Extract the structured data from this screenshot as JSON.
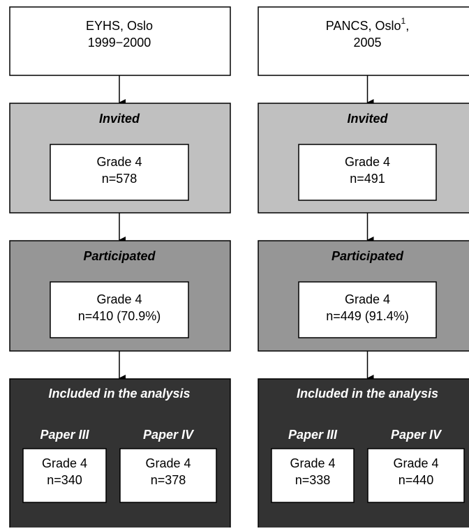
{
  "columns": [
    {
      "source": {
        "line1": "EYHS, Oslo",
        "line2": "1999−2000"
      },
      "invited": {
        "label": "Invited",
        "grade": "Grade 4",
        "n": "n=578"
      },
      "participated": {
        "label": "Participated",
        "grade": "Grade 4",
        "n": "n=410 (70.9%)"
      },
      "included": {
        "label": "Included in the analysis",
        "papers": [
          {
            "label": "Paper III",
            "grade": "Grade 4",
            "n": "n=340"
          },
          {
            "label": "Paper IV",
            "grade": "Grade 4",
            "n": "n=378"
          }
        ]
      }
    },
    {
      "source": {
        "line1": "PANCS, Oslo",
        "sup": "1",
        "suffix": ",",
        "line2": "2005"
      },
      "invited": {
        "label": "Invited",
        "grade": "Grade 4",
        "n": "n=491"
      },
      "participated": {
        "label": "Participated",
        "grade": "Grade 4",
        "n": "n=449 (91.4%)"
      },
      "included": {
        "label": "Included in the analysis",
        "papers": [
          {
            "label": "Paper III",
            "grade": "Grade 4",
            "n": "n=338"
          },
          {
            "label": "Paper IV",
            "grade": "Grade 4",
            "n": "n=440"
          }
        ]
      }
    }
  ]
}
